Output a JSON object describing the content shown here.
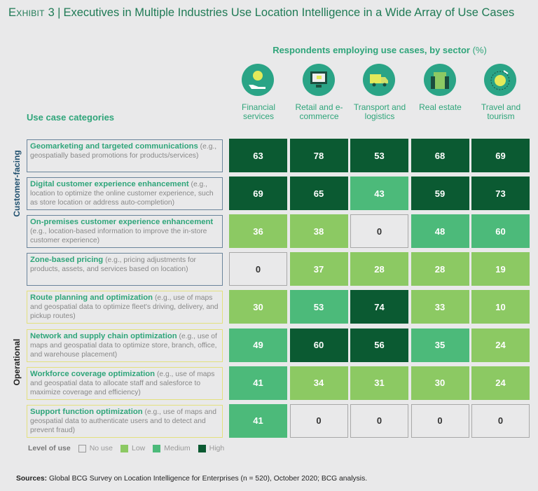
{
  "title": {
    "exhibit": "Exhibit 3",
    "text": "Executives in Multiple Industries Use Location Intelligence in a Wide Array of Use Cases"
  },
  "subhead": {
    "label": "Respondents employing use cases, by sector",
    "unit": "(%)"
  },
  "use_case_header": "Use case categories",
  "groups": {
    "customer": "Customer-facing",
    "operational": "Operational"
  },
  "legend": {
    "title": "Level of use",
    "none": "No use",
    "low": "Low",
    "medium": "Medium",
    "high": "High"
  },
  "colors": {
    "none": "#e9e9ea",
    "low": "#8cc963",
    "medium": "#4cba7a",
    "high": "#0b5a32",
    "icon": "#2aa486"
  },
  "source": {
    "label": "Sources:",
    "text": "Global BCG Survey on Location Intelligence for Enterprises (n = 520), October 2020; BCG analysis."
  },
  "chart_data": {
    "type": "table",
    "title": "Executives in Multiple Industries Use Location Intelligence in a Wide Array of Use Cases",
    "columns": [
      {
        "label": "Financial services",
        "icon": "hand-coin-icon"
      },
      {
        "label": "Retail and e-commerce",
        "icon": "monitor-cart-icon"
      },
      {
        "label": "Transport and logistics",
        "icon": "truck-icon"
      },
      {
        "label": "Real estate",
        "icon": "building-icon"
      },
      {
        "label": "Travel and tourism",
        "icon": "globe-plane-icon"
      }
    ],
    "rows": [
      {
        "group": "customer",
        "name": "Geomarketing and targeted communications",
        "desc": "(e.g., geospatially based promotions for products/services)",
        "values": [
          63,
          78,
          53,
          68,
          69
        ],
        "levels": [
          "high",
          "high",
          "high",
          "high",
          "high"
        ]
      },
      {
        "group": "customer",
        "name": "Digital customer experience enhancement",
        "desc": "(e.g., location to optimize the online customer experience, such as store location or address auto-completion)",
        "values": [
          69,
          65,
          43,
          59,
          73
        ],
        "levels": [
          "high",
          "high",
          "medium",
          "high",
          "high"
        ]
      },
      {
        "group": "customer",
        "name": "On-premises customer experience enhancement",
        "desc": "(e.g., location-based information to improve the in-store customer experience)",
        "values": [
          36,
          38,
          0,
          48,
          60
        ],
        "levels": [
          "low",
          "low",
          "none",
          "medium",
          "medium"
        ]
      },
      {
        "group": "customer",
        "name": "Zone-based pricing",
        "desc": "(e.g., pricing adjustments for products, assets, and services based on location)",
        "values": [
          0,
          37,
          28,
          28,
          19
        ],
        "levels": [
          "none",
          "low",
          "low",
          "low",
          "low"
        ]
      },
      {
        "group": "operational",
        "name": "Route planning and optimization",
        "desc": "(e.g., use of maps and geospatial data to optimize fleet's driving, delivery, and pickup routes)",
        "values": [
          30,
          53,
          74,
          33,
          10
        ],
        "levels": [
          "low",
          "medium",
          "high",
          "low",
          "low"
        ]
      },
      {
        "group": "operational",
        "name": "Network and supply chain optimization",
        "desc": "(e.g., use of maps and geospatial data to optimize store, branch, office, and warehouse placement)",
        "values": [
          49,
          60,
          56,
          35,
          24
        ],
        "levels": [
          "medium",
          "high",
          "high",
          "medium",
          "low"
        ]
      },
      {
        "group": "operational",
        "name": "Workforce coverage optimization",
        "desc": "(e.g., use of maps and geospatial data to allocate staff and salesforce to maximize coverage and efficiency)",
        "values": [
          41,
          34,
          31,
          30,
          24
        ],
        "levels": [
          "medium",
          "low",
          "low",
          "low",
          "low"
        ]
      },
      {
        "group": "operational",
        "name": "Support function optimization",
        "desc": "(e.g., use of maps and geospatial data to authenticate users and to detect and prevent fraud)",
        "values": [
          41,
          0,
          0,
          0,
          0
        ],
        "levels": [
          "medium",
          "none",
          "none",
          "none",
          "none"
        ]
      }
    ]
  }
}
